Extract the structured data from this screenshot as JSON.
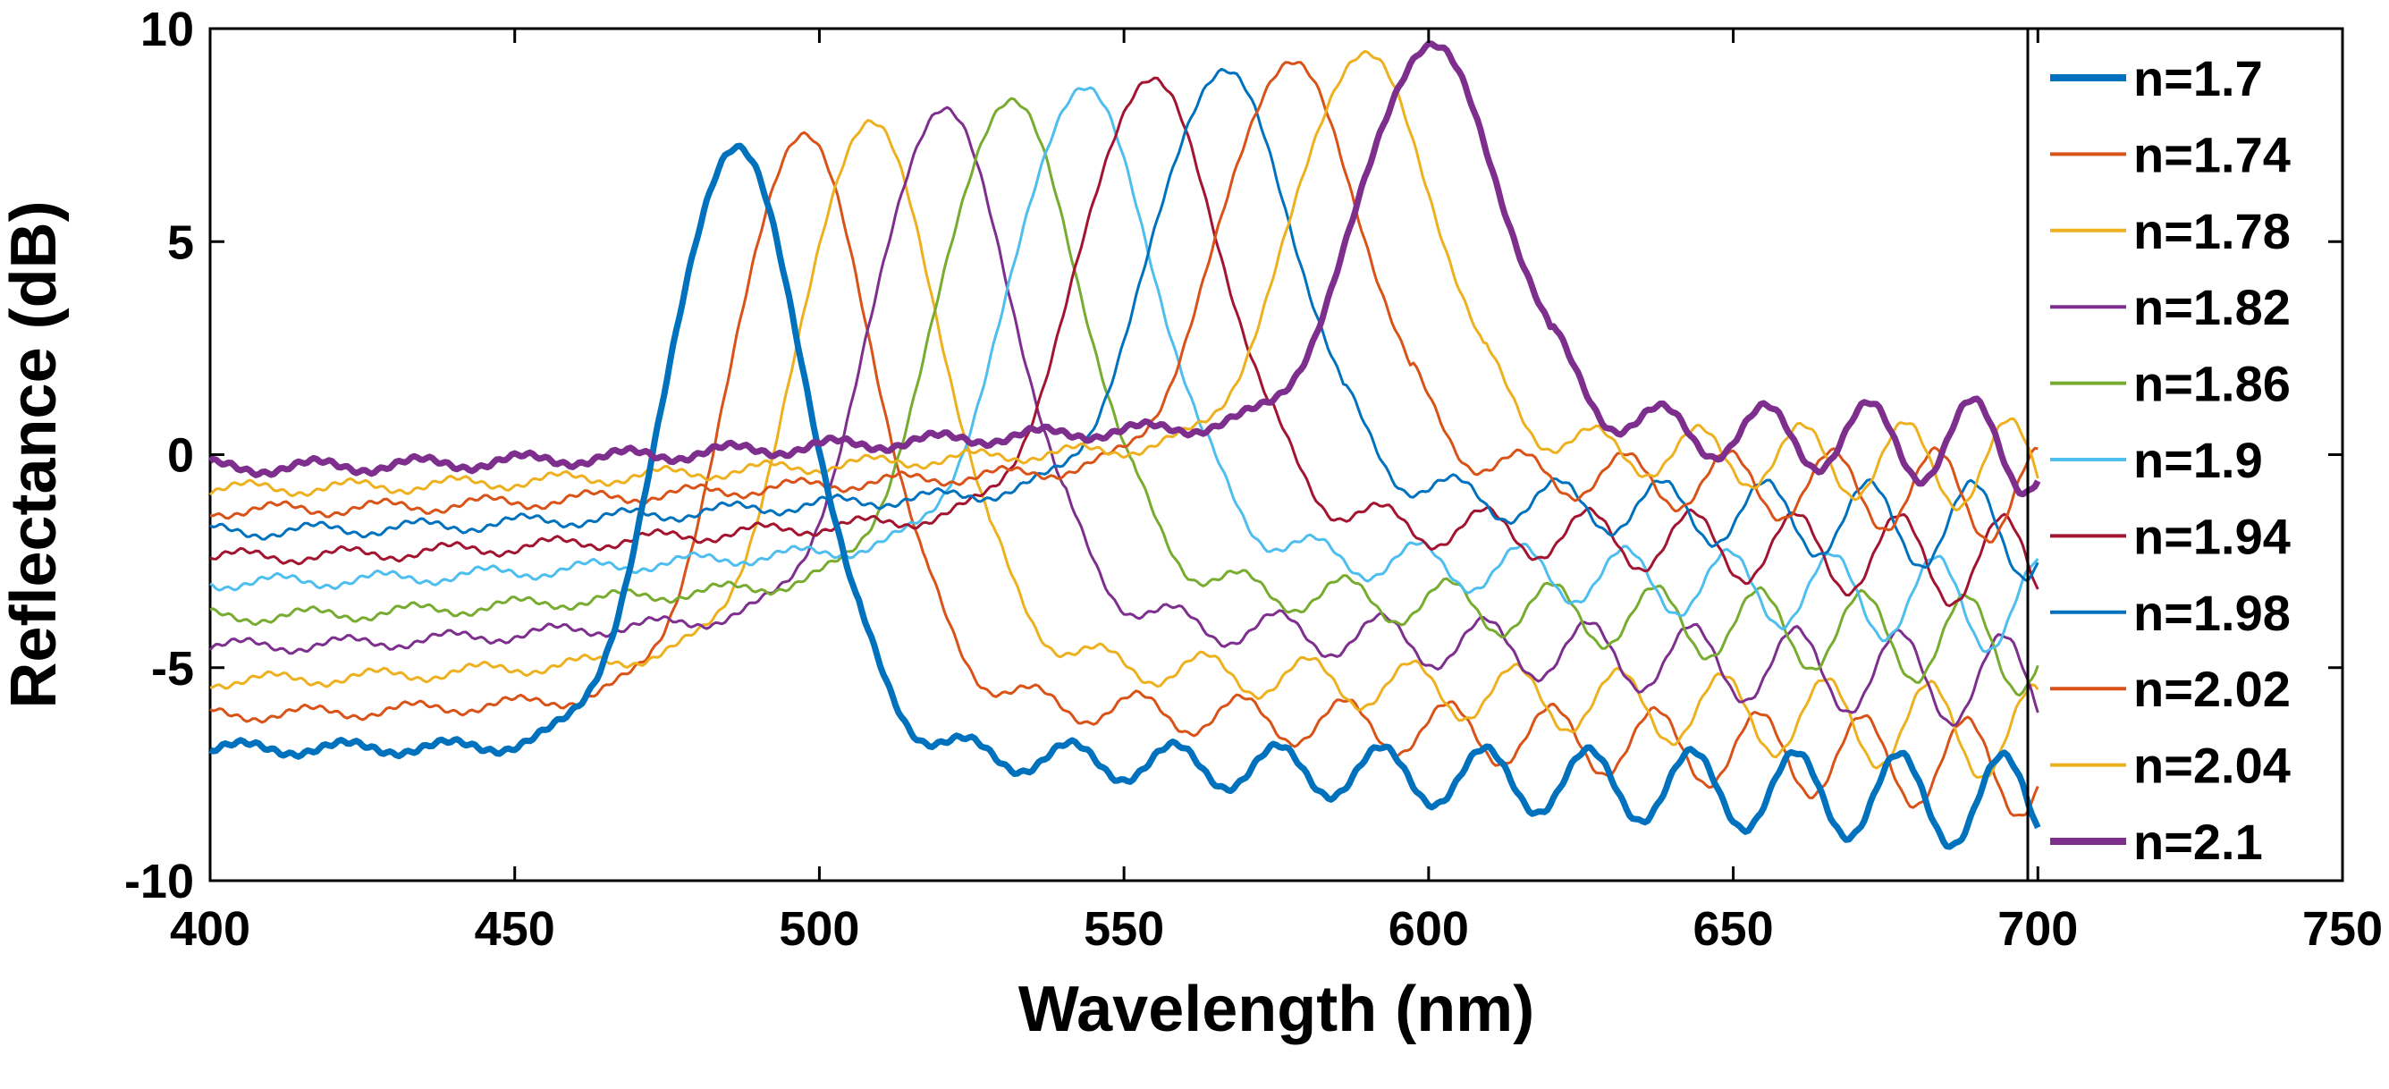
{
  "chart_data": {
    "type": "line",
    "title": "",
    "xlabel": "Wavelength (nm)",
    "ylabel": "Reflectance (dB)",
    "xlim": [
      400,
      750
    ],
    "ylim": [
      -10,
      10
    ],
    "xticks": [
      400,
      450,
      500,
      550,
      600,
      650,
      700,
      750
    ],
    "yticks": [
      -10,
      -5,
      0,
      5,
      10
    ],
    "xtick_labels": [
      "400",
      "450",
      "500",
      "550",
      "600",
      "650",
      "700",
      "750"
    ],
    "ytick_labels": [
      "-10",
      "-5",
      "0",
      "5",
      "10"
    ],
    "x_range_data": [
      400,
      700
    ],
    "legend_position": "right",
    "series": [
      {
        "name": "n=1.7",
        "color": "#0072BD",
        "width": "thick",
        "start": -6.9,
        "peak_x": 486,
        "peak_y": 7.2,
        "post": -6.8,
        "end": -8.2
      },
      {
        "name": "n=1.74",
        "color": "#D95319",
        "width": "thin",
        "start": -6.1,
        "peak_x": 497,
        "peak_y": 7.5,
        "post": -5.5,
        "end": -7.4
      },
      {
        "name": "n=1.78",
        "color": "#EDB120",
        "width": "thin",
        "start": -5.3,
        "peak_x": 508,
        "peak_y": 7.8,
        "post": -4.5,
        "end": -6.6
      },
      {
        "name": "n=1.82",
        "color": "#7E2F8E",
        "width": "thin",
        "start": -4.5,
        "peak_x": 520,
        "peak_y": 8.1,
        "post": -3.6,
        "end": -5.4
      },
      {
        "name": "n=1.86",
        "color": "#77AC30",
        "width": "thin",
        "start": -3.8,
        "peak_x": 531,
        "peak_y": 8.3,
        "post": -2.8,
        "end": -4.5
      },
      {
        "name": "n=1.9",
        "color": "#4DBEEE",
        "width": "thin",
        "start": -3.0,
        "peak_x": 543,
        "peak_y": 8.6,
        "post": -2.0,
        "end": -3.6
      },
      {
        "name": "n=1.94",
        "color": "#A2142F",
        "width": "thin",
        "start": -2.4,
        "peak_x": 554,
        "peak_y": 8.8,
        "post": -1.3,
        "end": -2.6
      },
      {
        "name": "n=1.98",
        "color": "#0072BD",
        "width": "thin",
        "start": -1.8,
        "peak_x": 566,
        "peak_y": 9.0,
        "post": -0.7,
        "end": -1.8
      },
      {
        "name": "n=2.02",
        "color": "#D95319",
        "width": "thin",
        "start": -1.3,
        "peak_x": 577,
        "peak_y": 9.2,
        "post": -0.2,
        "end": -1.0
      },
      {
        "name": "n=2.04",
        "color": "#EDB120",
        "width": "thin",
        "start": -0.8,
        "peak_x": 589,
        "peak_y": 9.4,
        "post": 0.3,
        "end": -0.3
      },
      {
        "name": "n=2.1",
        "color": "#7E2F8E",
        "width": "thick",
        "start": -0.3,
        "peak_x": 600,
        "peak_y": 9.6,
        "post": 0.8,
        "end": 0.2
      }
    ]
  }
}
